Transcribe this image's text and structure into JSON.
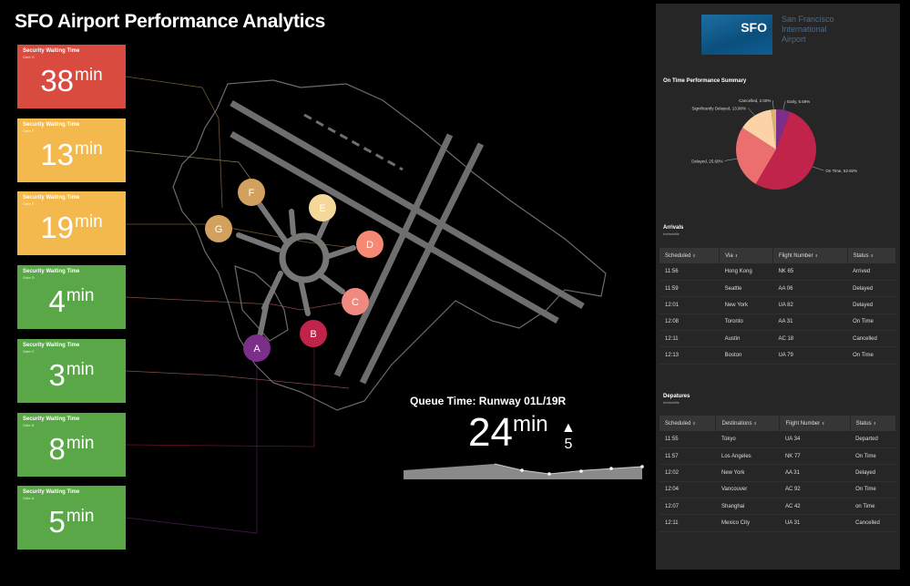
{
  "title": "SFO Airport Performance Analytics",
  "security_cards": [
    {
      "label": "Security Waiting Time",
      "sublabel": "Gate G",
      "value": "38",
      "unit": "min",
      "color": "#d94a3f"
    },
    {
      "label": "Security Waiting Time",
      "sublabel": "Gate F",
      "value": "13",
      "unit": "min",
      "color": "#f3b94c"
    },
    {
      "label": "Security Waiting Time",
      "sublabel": "Gate E",
      "value": "19",
      "unit": "min",
      "color": "#f3b94c"
    },
    {
      "label": "Security Waiting Time",
      "sublabel": "Gate D",
      "value": "4",
      "unit": "min",
      "color": "#5aa748"
    },
    {
      "label": "Security Waiting Time",
      "sublabel": "Gate C",
      "value": "3",
      "unit": "min",
      "color": "#5aa748"
    },
    {
      "label": "Security Waiting Time",
      "sublabel": "Gate B",
      "value": "8",
      "unit": "min",
      "color": "#5aa748"
    },
    {
      "label": "Security Waiting Time",
      "sublabel": "Gate A",
      "value": "5",
      "unit": "min",
      "color": "#5aa748"
    }
  ],
  "gates": [
    {
      "label": "F",
      "color": "#d2a15d"
    },
    {
      "label": "E",
      "color": "#f5d79a"
    },
    {
      "label": "G",
      "color": "#d2a15d"
    },
    {
      "label": "D",
      "color": "#f48a74"
    },
    {
      "label": "C",
      "color": "#f08a80"
    },
    {
      "label": "B",
      "color": "#c0244a"
    },
    {
      "label": "A",
      "color": "#7b2f8a"
    }
  ],
  "queue": {
    "title": "Queue Time: Runway 01L/19R",
    "value": "24",
    "unit": "min",
    "delta": "5",
    "delta_icon": "triangle-up-icon"
  },
  "logo": {
    "code": "SFO",
    "line1": "San Francisco",
    "line2": "International",
    "line3": "Airport"
  },
  "on_time": {
    "title": "On Time Performance Summary",
    "slices": [
      {
        "label": "Early",
        "value": 5.59,
        "display": "Early, 5.59%",
        "color": "#7b2f8a"
      },
      {
        "label": "On Time",
        "value": 52.92,
        "display": "On Time, 52.92%",
        "color": "#c0244a"
      },
      {
        "label": "Delayed",
        "value": 25.6,
        "display": "Delayed, 25.60%",
        "color": "#ec6f70"
      },
      {
        "label": "Significantly Delayed",
        "value": 13.9,
        "display": "Significantly Delayed, 13.90%",
        "color": "#fcd3a6"
      },
      {
        "label": "Cancelled",
        "value": 2.0,
        "display": "Cancelled, 2.00%",
        "color": "#d8b56c"
      }
    ]
  },
  "arrivals": {
    "title": "Arrivals",
    "subtitle": "text/subtitle",
    "columns": [
      "Scheduled",
      "Via",
      "Flight Number",
      "Status"
    ],
    "rows": [
      [
        "11:56",
        "Hong Kong",
        "NK 65",
        "Arrived"
      ],
      [
        "11:59",
        "Seattle",
        "AA 06",
        "Delayed"
      ],
      [
        "12:01",
        "New York",
        "UA 82",
        "Delayed"
      ],
      [
        "12:08",
        "Toronto",
        "AA 31",
        "On Time"
      ],
      [
        "12:11",
        "Austin",
        "AC 18",
        "Cancelled"
      ],
      [
        "12:13",
        "Boston",
        "UA 79",
        "On Time"
      ]
    ]
  },
  "departures": {
    "title": "Depatures",
    "subtitle": "text/subtitle",
    "columns": [
      "Scheduled",
      "Destinations",
      "Flight Number",
      "Status"
    ],
    "rows": [
      [
        "11:55",
        "Tokyo",
        "UA 34",
        "Departed"
      ],
      [
        "11:57",
        "Los Angeles",
        "NK 77",
        "On Time"
      ],
      [
        "12:02",
        "New York",
        "AA 31",
        "Delayed"
      ],
      [
        "12:04",
        "Vancouver",
        "AC 92",
        "On Time"
      ],
      [
        "12:07",
        "Shanghai",
        "AC 42",
        "on Time"
      ],
      [
        "12:11",
        "Mexico City",
        "UA 31",
        "Cancelled"
      ]
    ]
  }
}
